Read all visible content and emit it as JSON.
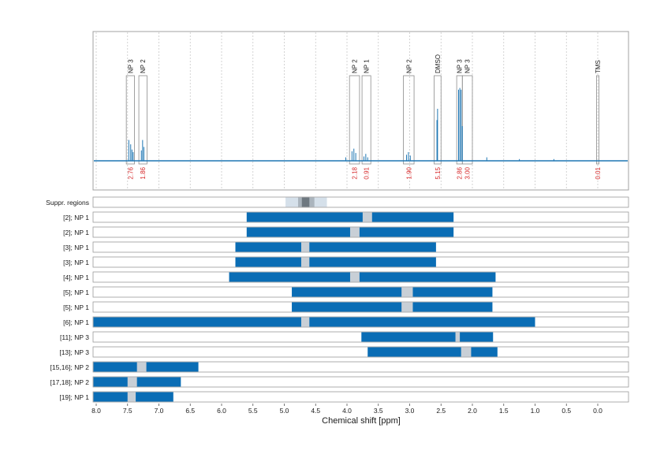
{
  "chart_data": [
    {
      "type": "line",
      "title": "",
      "xlim": [
        8.05,
        -0.35
      ],
      "x_ticks": [
        8.0,
        7.5,
        7.0,
        6.5,
        6.0,
        5.5,
        5.0,
        4.5,
        4.0,
        3.5,
        3.0,
        2.5,
        2.0,
        1.5,
        1.0,
        0.5,
        0.0
      ],
      "grid": "vertical dashed",
      "baseline_color": "#1f77b4",
      "peaks": [
        {
          "x": 7.48,
          "h": 0.24
        },
        {
          "x": 7.45,
          "h": 0.19
        },
        {
          "x": 7.43,
          "h": 0.13
        },
        {
          "x": 7.41,
          "h": 0.1
        },
        {
          "x": 7.28,
          "h": 0.12
        },
        {
          "x": 7.26,
          "h": 0.24
        },
        {
          "x": 7.24,
          "h": 0.16
        },
        {
          "x": 4.02,
          "h": 0.04
        },
        {
          "x": 3.92,
          "h": 0.11
        },
        {
          "x": 3.89,
          "h": 0.14
        },
        {
          "x": 3.86,
          "h": 0.09
        },
        {
          "x": 3.73,
          "h": 0.05
        },
        {
          "x": 3.7,
          "h": 0.08
        },
        {
          "x": 3.67,
          "h": 0.04
        },
        {
          "x": 3.05,
          "h": 0.07
        },
        {
          "x": 3.02,
          "h": 0.1
        },
        {
          "x": 2.99,
          "h": 0.06
        },
        {
          "x": 2.565,
          "h": 0.47
        },
        {
          "x": 2.555,
          "h": 0.6
        },
        {
          "x": 2.22,
          "h": 0.82
        },
        {
          "x": 2.2,
          "h": 0.84
        },
        {
          "x": 2.18,
          "h": 0.82
        },
        {
          "x": 2.16,
          "h": 0.4
        },
        {
          "x": 1.77,
          "h": 0.04
        },
        {
          "x": 1.25,
          "h": 0.02
        },
        {
          "x": 0.7,
          "h": 0.02
        }
      ],
      "regions": [
        {
          "label": "NP 3",
          "from": 7.52,
          "to": 7.39,
          "integral": "2.76"
        },
        {
          "label": "NP 2",
          "from": 7.32,
          "to": 7.19,
          "integral": "1.86"
        },
        {
          "label": "NP 2",
          "from": 3.96,
          "to": 3.8,
          "integral": "2.18"
        },
        {
          "label": "NP 1",
          "from": 3.76,
          "to": 3.62,
          "integral": "0.91"
        },
        {
          "label": "NP 2",
          "from": 3.1,
          "to": 2.93,
          "integral": "1.90"
        },
        {
          "label": "DMSO",
          "from": 2.61,
          "to": 2.5,
          "integral": "5.15"
        },
        {
          "label": "NP 3",
          "from": 2.25,
          "to": 2.16,
          "integral": "2.86"
        },
        {
          "label": "NP 3",
          "from": 2.16,
          "to": 2.0,
          "integral": "3.00"
        },
        {
          "label": "TMS",
          "from": 0.02,
          "to": -0.02,
          "integral": "0.01"
        }
      ]
    },
    {
      "type": "bar",
      "orientation": "horizontal-range",
      "xlabel": "Chemical shift [ppm]",
      "xlim": [
        8.05,
        -0.35
      ],
      "x_ticks": [
        "8.0",
        "7.5",
        "7.0",
        "6.5",
        "6.0",
        "5.5",
        "5.0",
        "4.5",
        "4.0",
        "3.5",
        "3.0",
        "2.5",
        "2.0",
        "1.5",
        "1.0",
        "0.5",
        "0.0"
      ],
      "bar_color": "#0a6db5",
      "gap_color": "#c8cfd6",
      "suppressed": {
        "label": "Suppr. regions",
        "bands": [
          {
            "from": 4.98,
            "to": 4.32,
            "color": "#d5e0ea"
          },
          {
            "from": 4.78,
            "to": 4.52,
            "color": "#aab4bd"
          },
          {
            "from": 4.72,
            "to": 4.6,
            "color": "#6e7880"
          }
        ]
      },
      "rows": [
        {
          "label": "[2]; NP 1",
          "from": 5.6,
          "to": 2.3,
          "gap": [
            3.75,
            3.6
          ]
        },
        {
          "label": "[2]; NP 1",
          "from": 5.6,
          "to": 2.3,
          "gap": [
            3.95,
            3.8
          ]
        },
        {
          "label": "[3]; NP 1",
          "from": 5.78,
          "to": 2.58,
          "gap": [
            4.73,
            4.6
          ]
        },
        {
          "label": "[3]; NP 1",
          "from": 5.78,
          "to": 2.58,
          "gap": [
            4.73,
            4.6
          ]
        },
        {
          "label": "[4]; NP 1",
          "from": 5.88,
          "to": 1.63,
          "gap": [
            3.95,
            3.8
          ]
        },
        {
          "label": "[5]; NP 1",
          "from": 4.88,
          "to": 1.68,
          "gap": [
            3.13,
            2.95
          ]
        },
        {
          "label": "[5]; NP 1",
          "from": 4.88,
          "to": 1.68,
          "gap": [
            3.13,
            2.95
          ]
        },
        {
          "label": "[6]; NP 1",
          "from": 8.05,
          "to": 1.0,
          "gap": [
            4.73,
            4.6
          ]
        },
        {
          "label": "[11]; NP 3",
          "from": 3.77,
          "to": 1.67,
          "gap": [
            2.27,
            2.2
          ]
        },
        {
          "label": "[13]; NP 3",
          "from": 3.67,
          "to": 1.6,
          "gap": [
            2.18,
            2.02
          ]
        },
        {
          "label": "[15,16]; NP 2",
          "from": 8.05,
          "to": 6.37,
          "gap": [
            7.35,
            7.2
          ]
        },
        {
          "label": "[17,18]; NP 2",
          "from": 8.05,
          "to": 6.65,
          "gap": [
            7.5,
            7.35
          ]
        },
        {
          "label": "[19]; NP 1",
          "from": 8.05,
          "to": 6.77,
          "gap": [
            7.5,
            7.37
          ]
        }
      ]
    }
  ]
}
